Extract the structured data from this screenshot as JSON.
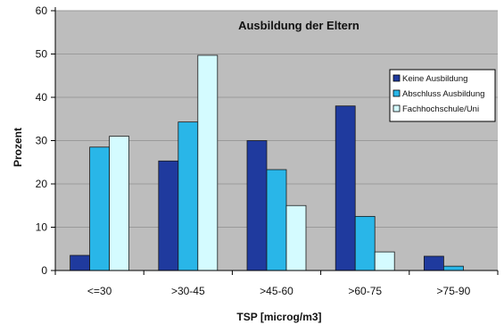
{
  "chart_data": {
    "type": "bar",
    "title": "Ausbildung der Eltern",
    "xlabel": "TSP [microg/m3]",
    "ylabel": "Prozent",
    "categories": [
      "<=30",
      ">30-45",
      ">45-60",
      ">60-75",
      ">75-90"
    ],
    "ylim": [
      0,
      60
    ],
    "yticks": [
      0,
      10,
      20,
      30,
      40,
      50,
      60
    ],
    "grid": true,
    "legend_position": "right",
    "series": [
      {
        "name": "Keine Ausbildung",
        "color": "#1f3a9e",
        "values": [
          3.5,
          25.3,
          30,
          38,
          3.3
        ]
      },
      {
        "name": "Abschluss Ausbildung",
        "color": "#29b6e8",
        "values": [
          28.5,
          34.3,
          23.3,
          12.5,
          1
        ]
      },
      {
        "name": "Fachhochschule/Uni",
        "color": "#d4fbff",
        "values": [
          31,
          49.7,
          15,
          4.3,
          0
        ]
      }
    ],
    "plot_background": "#bdbdbd"
  }
}
